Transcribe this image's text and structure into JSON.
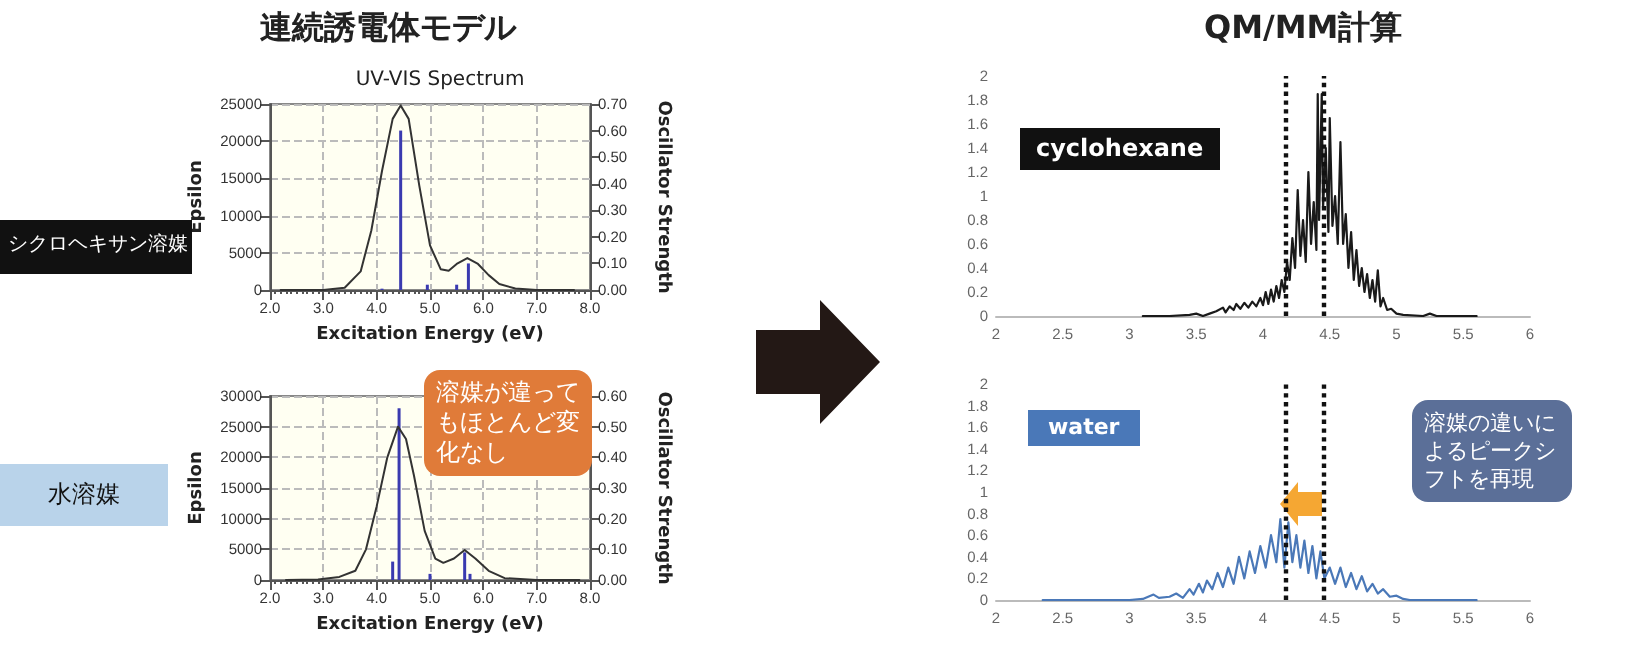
{
  "chart_data": [
    {
      "type": "line",
      "title": "UV-VIS Spectrum",
      "xlabel": "Excitation Energy (eV)",
      "ylabel": "Epsilon",
      "y2label": "Oscillator Strength",
      "annotations": [
        "連続誘電体モデル",
        "シクロヘキサン溶媒"
      ],
      "xlim": [
        2,
        8
      ],
      "xticks": [
        {
          "value": 2,
          "label": "2.0"
        },
        {
          "value": 3,
          "label": "3.0"
        },
        {
          "value": 4,
          "label": "4.0"
        },
        {
          "value": 5,
          "label": "5.0"
        },
        {
          "value": 6,
          "label": "6.0"
        },
        {
          "value": 7,
          "label": "7.0"
        },
        {
          "value": 8,
          "label": "8.0"
        }
      ],
      "ylim": [
        0,
        25000
      ],
      "yticks": [
        0,
        5000,
        10000,
        15000,
        20000,
        25000
      ],
      "y2lim": [
        0,
        0.7
      ],
      "y2ticks": [
        {
          "value": 0,
          "label": "0.00"
        },
        {
          "value": 0.1,
          "label": "0.10"
        },
        {
          "value": 0.2,
          "label": "0.20"
        },
        {
          "value": 0.3,
          "label": "0.30"
        },
        {
          "value": 0.4,
          "label": "0.40"
        },
        {
          "value": 0.5,
          "label": "0.50"
        },
        {
          "value": 0.6,
          "label": "0.60"
        },
        {
          "value": 0.7,
          "label": "0.70"
        }
      ],
      "grid": true,
      "marker": "none",
      "series": [
        {
          "color": "#333333",
          "x": [
            2.2,
            3.0,
            3.4,
            3.7,
            3.9,
            4.1,
            4.3,
            4.45,
            4.6,
            4.8,
            5.0,
            5.2,
            5.35,
            5.5,
            5.7,
            5.9,
            6.1,
            6.3,
            6.6,
            7.0,
            7.7
          ],
          "values": [
            0,
            0,
            300,
            2500,
            8000,
            16000,
            23000,
            24800,
            23000,
            14000,
            6000,
            2800,
            2600,
            3500,
            4300,
            3500,
            2000,
            800,
            200,
            0,
            0
          ]
        },
        {
          "type": "bar",
          "axis": "y2",
          "color": "#3a3ab0",
          "x": [
            4.1,
            4.45,
            4.95,
            5.5,
            5.72
          ],
          "values": [
            0.005,
            0.6,
            0.02,
            0.02,
            0.1
          ]
        }
      ]
    },
    {
      "type": "line",
      "xlabel": "Excitation Energy (eV)",
      "ylabel": "Epsilon",
      "y2label": "Oscillator Strength",
      "annotations": [
        "水溶媒",
        "溶媒が違ってもほとんど変化なし"
      ],
      "xlim": [
        2,
        8
      ],
      "xticks": [
        {
          "value": 2,
          "label": "2.0"
        },
        {
          "value": 3,
          "label": "3.0"
        },
        {
          "value": 4,
          "label": "4.0"
        },
        {
          "value": 5,
          "label": "5.0"
        },
        {
          "value": 6,
          "label": "6.0"
        },
        {
          "value": 7,
          "label": "7.0"
        },
        {
          "value": 8,
          "label": "8.0"
        }
      ],
      "ylim": [
        0,
        30000
      ],
      "yticks": [
        0,
        5000,
        10000,
        15000,
        20000,
        25000,
        30000
      ],
      "y2lim": [
        0,
        0.6
      ],
      "y2ticks": [
        {
          "value": 0,
          "label": "0.00"
        },
        {
          "value": 0.1,
          "label": "0.10"
        },
        {
          "value": 0.2,
          "label": "0.20"
        },
        {
          "value": 0.3,
          "label": "0.30"
        },
        {
          "value": 0.4,
          "label": "0.40"
        },
        {
          "value": 0.5,
          "label": "0.50"
        },
        {
          "value": 0.6,
          "label": "0.60"
        }
      ],
      "grid": true,
      "marker": "none",
      "series": [
        {
          "color": "#333333",
          "x": [
            2.3,
            2.9,
            3.3,
            3.6,
            3.8,
            4.0,
            4.2,
            4.4,
            4.55,
            4.7,
            4.9,
            5.1,
            5.25,
            5.45,
            5.65,
            5.85,
            6.1,
            6.4,
            7.0,
            7.8
          ],
          "values": [
            0,
            100,
            500,
            1500,
            5000,
            12000,
            20000,
            25000,
            23000,
            17000,
            8000,
            3500,
            2800,
            3500,
            4900,
            3500,
            1500,
            300,
            0,
            0
          ]
        },
        {
          "type": "bar",
          "axis": "y2",
          "color": "#3a3ab0",
          "x": [
            4.3,
            4.42,
            5.0,
            5.65,
            5.75
          ],
          "values": [
            0.06,
            0.56,
            0.02,
            0.09,
            0.02
          ]
        }
      ]
    },
    {
      "type": "line",
      "annotations": [
        "QM/MM計算",
        "cyclohexane"
      ],
      "xlim": [
        2,
        6
      ],
      "xticks": [
        2,
        2.5,
        3,
        3.5,
        4,
        4.5,
        5,
        5.5,
        6
      ],
      "ylim": [
        0,
        2
      ],
      "yticks": [
        0,
        0.2,
        0.4,
        0.6,
        0.8,
        1,
        1.2,
        1.4,
        1.6,
        1.8,
        2
      ],
      "marker": "none",
      "ref_lines": [
        {
          "axis": "x",
          "value": 4.17,
          "color": "#111111",
          "line_style": "dotted"
        },
        {
          "axis": "x",
          "value": 4.45,
          "color": "#111111",
          "line_style": "dotted"
        }
      ],
      "series": [
        {
          "color": "#1a1a1a",
          "x": [
            3.1,
            3.3,
            3.45,
            3.5,
            3.55,
            3.6,
            3.65,
            3.7,
            3.72,
            3.75,
            3.78,
            3.8,
            3.83,
            3.86,
            3.89,
            3.92,
            3.95,
            3.98,
            4.0,
            4.02,
            4.04,
            4.06,
            4.08,
            4.1,
            4.12,
            4.14,
            4.16,
            4.18,
            4.2,
            4.22,
            4.24,
            4.26,
            4.28,
            4.3,
            4.32,
            4.34,
            4.36,
            4.38,
            4.4,
            4.41,
            4.42,
            4.44,
            4.45,
            4.47,
            4.49,
            4.5,
            4.52,
            4.54,
            4.56,
            4.58,
            4.6,
            4.62,
            4.64,
            4.66,
            4.68,
            4.7,
            4.72,
            4.74,
            4.76,
            4.78,
            4.8,
            4.82,
            4.84,
            4.86,
            4.88,
            4.9,
            4.93,
            4.96,
            5.0,
            5.05,
            5.2,
            5.25,
            5.3,
            5.6
          ],
          "values": [
            0,
            0,
            0.01,
            0.02,
            0,
            0.02,
            0.04,
            0.07,
            0.03,
            0.08,
            0.05,
            0.1,
            0.06,
            0.11,
            0.07,
            0.12,
            0.08,
            0.15,
            0.09,
            0.2,
            0.1,
            0.22,
            0.12,
            0.25,
            0.15,
            0.3,
            0.2,
            0.45,
            0.3,
            0.65,
            0.4,
            1.05,
            0.5,
            0.8,
            0.45,
            1.2,
            0.6,
            0.95,
            0.55,
            1.85,
            0.8,
            1.85,
            0.9,
            1.4,
            0.7,
            1.65,
            0.75,
            1.0,
            0.6,
            1.45,
            0.6,
            0.85,
            0.4,
            0.7,
            0.3,
            0.55,
            0.25,
            0.4,
            0.2,
            0.35,
            0.15,
            0.3,
            0.12,
            0.38,
            0.08,
            0.15,
            0.05,
            0.06,
            0.02,
            0.01,
            0,
            0.02,
            0,
            0
          ]
        }
      ]
    },
    {
      "type": "line",
      "annotations": [
        "water",
        "溶媒の違いによるピークシフトを再現"
      ],
      "xlim": [
        2,
        6
      ],
      "xticks": [
        2,
        2.5,
        3,
        3.5,
        4,
        4.5,
        5,
        5.5,
        6
      ],
      "ylim": [
        0,
        2
      ],
      "yticks": [
        0,
        0.2,
        0.4,
        0.6,
        0.8,
        1,
        1.2,
        1.4,
        1.6,
        1.8,
        2
      ],
      "marker": "none",
      "ref_lines": [
        {
          "axis": "x",
          "value": 4.17,
          "color": "#111111",
          "line_style": "dotted"
        },
        {
          "axis": "x",
          "value": 4.45,
          "color": "#111111",
          "line_style": "dotted"
        }
      ],
      "series": [
        {
          "color": "#4a78b8",
          "x": [
            2.35,
            3.0,
            3.1,
            3.18,
            3.22,
            3.3,
            3.35,
            3.4,
            3.45,
            3.48,
            3.52,
            3.55,
            3.58,
            3.62,
            3.66,
            3.7,
            3.74,
            3.78,
            3.82,
            3.86,
            3.9,
            3.94,
            3.98,
            4.02,
            4.06,
            4.1,
            4.13,
            4.16,
            4.19,
            4.22,
            4.25,
            4.28,
            4.31,
            4.34,
            4.37,
            4.4,
            4.43,
            4.46,
            4.5,
            4.54,
            4.58,
            4.62,
            4.66,
            4.7,
            4.74,
            4.78,
            4.82,
            4.86,
            4.9,
            4.95,
            5.0,
            5.05,
            5.1,
            5.6
          ],
          "values": [
            0,
            0,
            0.01,
            0.05,
            0.02,
            0.03,
            0.06,
            0.02,
            0.1,
            0.05,
            0.15,
            0.07,
            0.18,
            0.1,
            0.25,
            0.12,
            0.3,
            0.15,
            0.4,
            0.2,
            0.45,
            0.25,
            0.5,
            0.3,
            0.6,
            0.35,
            0.75,
            0.3,
            0.72,
            0.35,
            0.6,
            0.3,
            0.55,
            0.25,
            0.5,
            0.2,
            0.45,
            0.2,
            0.3,
            0.15,
            0.3,
            0.12,
            0.25,
            0.1,
            0.22,
            0.08,
            0.15,
            0.06,
            0.1,
            0.03,
            0.04,
            0.01,
            0,
            0
          ]
        }
      ]
    }
  ]
}
